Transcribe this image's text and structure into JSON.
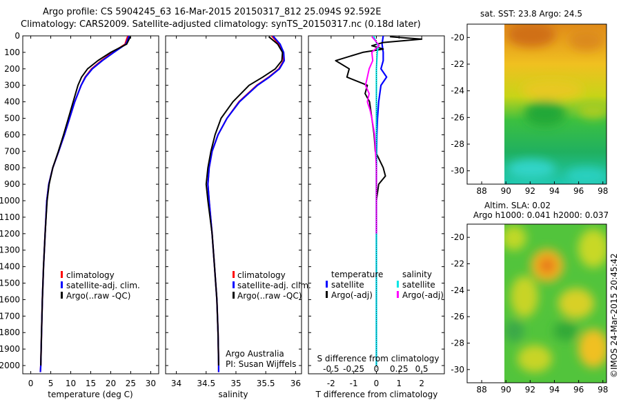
{
  "header": {
    "line1": "Argo profile: CS 5904245_63 16-Mar-2015 20150317_812 25.094S 92.592E",
    "line2": "Climatology: CARS2009. Satellite-adjusted climatology: synTS_20150317.nc (0.18d later)"
  },
  "colors": {
    "climatology": "#ff0000",
    "satellite": "#0000ff",
    "argo": "#000000",
    "salinity_satellite": "#00e5e5",
    "salinity_argo": "#ff00ff"
  },
  "depth_ticks": [
    "0",
    "100",
    "200",
    "300",
    "400",
    "500",
    "600",
    "700",
    "800",
    "900",
    "1000",
    "1100",
    "1200",
    "1300",
    "1400",
    "1500",
    "1600",
    "1700",
    "1800",
    "1900",
    "2000"
  ],
  "temperature_panel": {
    "xlabel": "temperature (deg C)",
    "x_ticks": [
      "0",
      "5",
      "10",
      "15",
      "20",
      "25",
      "30"
    ],
    "legend": [
      "climatology",
      "satellite-adj. clim.",
      "Argo(..raw -QC)"
    ]
  },
  "salinity_panel": {
    "xlabel": "salinity",
    "x_ticks": [
      "34",
      "34.5",
      "35",
      "35.5",
      "36"
    ],
    "legend": [
      "climatology",
      "satellite-adj. clim.",
      "Argo(..raw -QC)"
    ],
    "credit1": "Argo Australia",
    "credit2": "PI: Susan Wijffels"
  },
  "difference_panel": {
    "top_label": "S difference from climatology",
    "top_ticks": [
      "-0.5",
      "-0.25",
      "0",
      "0.25",
      "0.5"
    ],
    "xlabel": "T difference from climatology",
    "x_ticks": [
      "-2",
      "-1",
      "0",
      "1",
      "2"
    ],
    "legend_temperature_title": "temperature",
    "legend_temperature": [
      "satellite",
      "Argo(-adj)"
    ],
    "legend_salinity_title": "salinity",
    "legend_salinity": [
      "satellite",
      "Argo(-adj)"
    ]
  },
  "sst_map": {
    "title": "sat. SST: 23.8  Argo: 24.5",
    "lat_ticks": [
      "-20",
      "-22",
      "-24",
      "-26",
      "-28",
      "-30"
    ],
    "lon_ticks": [
      "88",
      "90",
      "92",
      "94",
      "96",
      "98"
    ]
  },
  "sla_map": {
    "title1": "Altim. SLA: 0.02",
    "title2": "Argo h1000: 0.041 h2000: 0.037",
    "lat_ticks": [
      "-20",
      "-22",
      "-24",
      "-26",
      "-28",
      "-30"
    ],
    "lon_ticks": [
      "88",
      "90",
      "92",
      "94",
      "96",
      "98"
    ]
  },
  "side_stamp": "©IMOS 24-Mar-2015 20:45:42",
  "chart_data": [
    {
      "type": "line",
      "title": "",
      "xlabel": "temperature (deg C)",
      "ylabel": "",
      "xlim": [
        -2,
        32
      ],
      "ylim": [
        2050,
        0
      ],
      "series": [
        {
          "name": "climatology",
          "depth": [
            0,
            20,
            50,
            100,
            150,
            200,
            250,
            300,
            400,
            500,
            600,
            700,
            800,
            900,
            1000,
            1200,
            1400,
            1600,
            1800,
            2000,
            2040
          ],
          "values": [
            24.3,
            24.0,
            23.6,
            20.5,
            17.7,
            15.2,
            13.6,
            12.6,
            11.0,
            9.7,
            8.4,
            7.0,
            5.5,
            4.5,
            4.0,
            3.6,
            3.2,
            2.9,
            2.7,
            2.5,
            2.4
          ]
        },
        {
          "name": "satellite-adj. clim.",
          "depth": [
            0,
            20,
            50,
            100,
            150,
            200,
            250,
            300,
            400,
            500,
            600,
            700,
            800,
            900,
            1000,
            1200,
            1400,
            1600,
            1800,
            2000,
            2040
          ],
          "values": [
            24.6,
            24.3,
            23.8,
            20.8,
            17.9,
            15.4,
            13.7,
            12.6,
            11.0,
            9.7,
            8.4,
            7.0,
            5.5,
            4.5,
            4.0,
            3.6,
            3.2,
            2.9,
            2.7,
            2.5,
            2.4
          ]
        },
        {
          "name": "Argo(..raw -QC)",
          "depth": [
            5,
            20,
            50,
            75,
            100,
            150,
            200,
            250,
            300,
            350,
            400,
            500,
            600,
            700,
            800,
            900,
            1000,
            1200,
            1400,
            1600,
            1800,
            2000
          ],
          "values": [
            24.9,
            24.6,
            24.0,
            22.0,
            20.0,
            16.8,
            14.2,
            12.7,
            11.8,
            11.2,
            10.6,
            9.4,
            8.2,
            6.9,
            5.5,
            4.6,
            4.1,
            3.6,
            3.2,
            2.9,
            2.7,
            2.5
          ]
        }
      ]
    },
    {
      "type": "line",
      "title": "",
      "xlabel": "salinity",
      "ylabel": "",
      "xlim": [
        33.82,
        36.1
      ],
      "ylim": [
        2050,
        0
      ],
      "series": [
        {
          "name": "climatology",
          "depth": [
            0,
            50,
            100,
            150,
            200,
            250,
            300,
            400,
            500,
            600,
            700,
            800,
            900,
            1000,
            1200,
            1400,
            1600,
            1800,
            2000,
            2040
          ],
          "values": [
            35.6,
            35.72,
            35.78,
            35.8,
            35.72,
            35.55,
            35.35,
            35.05,
            34.85,
            34.7,
            34.6,
            34.55,
            34.53,
            34.55,
            34.6,
            34.64,
            34.68,
            34.7,
            34.71,
            34.71
          ]
        },
        {
          "name": "satellite-adj. clim.",
          "depth": [
            0,
            50,
            100,
            150,
            200,
            250,
            300,
            400,
            500,
            600,
            700,
            800,
            900,
            1000,
            1200,
            1400,
            1600,
            1800,
            2000,
            2040
          ],
          "values": [
            35.62,
            35.74,
            35.8,
            35.81,
            35.73,
            35.56,
            35.36,
            35.06,
            34.85,
            34.7,
            34.6,
            34.55,
            34.53,
            34.55,
            34.6,
            34.64,
            34.68,
            34.7,
            34.71,
            34.71
          ]
        },
        {
          "name": "Argo(..raw -QC)",
          "depth": [
            5,
            50,
            100,
            150,
            200,
            250,
            300,
            400,
            500,
            600,
            700,
            800,
            900,
            1000,
            1200,
            1400,
            1600,
            1800,
            2000
          ],
          "values": [
            35.55,
            35.7,
            35.78,
            35.77,
            35.66,
            35.45,
            35.22,
            34.95,
            34.75,
            34.65,
            34.58,
            34.53,
            34.5,
            34.53,
            34.6,
            34.64,
            34.68,
            34.7,
            34.71
          ]
        }
      ]
    },
    {
      "type": "line",
      "title": "",
      "xlabel": "T difference from climatology",
      "ylabel": "",
      "xlim": [
        -3,
        3
      ],
      "ylim": [
        2050,
        0
      ],
      "series": [
        {
          "name": "temperature satellite",
          "depth": [
            0,
            50,
            100,
            150,
            200,
            250,
            300,
            400,
            500,
            600,
            800,
            1000,
            1200,
            1500,
            1800,
            2000
          ],
          "values": [
            0.3,
            0.25,
            0.3,
            0.3,
            0.2,
            0.45,
            0.2,
            0.1,
            0.05,
            0.02,
            0.0,
            0.0,
            0.0,
            0.0,
            0.0,
            0.0
          ]
        },
        {
          "name": "temperature Argo(-adj)",
          "depth": [
            5,
            20,
            40,
            60,
            80,
            100,
            150,
            200,
            250,
            300,
            350,
            400,
            500,
            600,
            700,
            800,
            850,
            900,
            1000,
            1200,
            1500,
            1800,
            2000
          ],
          "values": [
            0.6,
            2.0,
            0.3,
            -0.2,
            0.3,
            -0.6,
            -1.8,
            -1.2,
            -1.3,
            -0.4,
            -0.5,
            -0.3,
            -0.2,
            -0.1,
            -0.05,
            0.3,
            0.4,
            0.1,
            0.0,
            0.0,
            0.0,
            0.0,
            0.0
          ]
        }
      ]
    },
    {
      "type": "line",
      "title": "",
      "xlabel": "S difference from climatology",
      "ylabel": "",
      "xlim": [
        -0.75,
        0.75
      ],
      "ylim": [
        2050,
        0
      ],
      "series": [
        {
          "name": "salinity satellite",
          "depth": [
            0,
            30,
            60,
            100,
            200,
            400,
            800,
            1200,
            1600,
            2000
          ],
          "values": [
            -0.03,
            -0.01,
            0.02,
            0.01,
            0.0,
            0.0,
            0.0,
            0.0,
            0.0,
            0.0
          ]
        },
        {
          "name": "salinity Argo(-adj)",
          "depth": [
            5,
            30,
            60,
            100,
            150,
            200,
            250,
            300,
            350,
            400,
            450,
            500,
            600,
            700,
            800,
            1000,
            1200
          ],
          "values": [
            -0.05,
            -0.01,
            0.03,
            -0.05,
            -0.04,
            -0.08,
            -0.1,
            -0.12,
            -0.08,
            -0.1,
            -0.07,
            -0.05,
            -0.02,
            -0.01,
            0.0,
            0.0,
            0.0
          ]
        }
      ]
    }
  ]
}
